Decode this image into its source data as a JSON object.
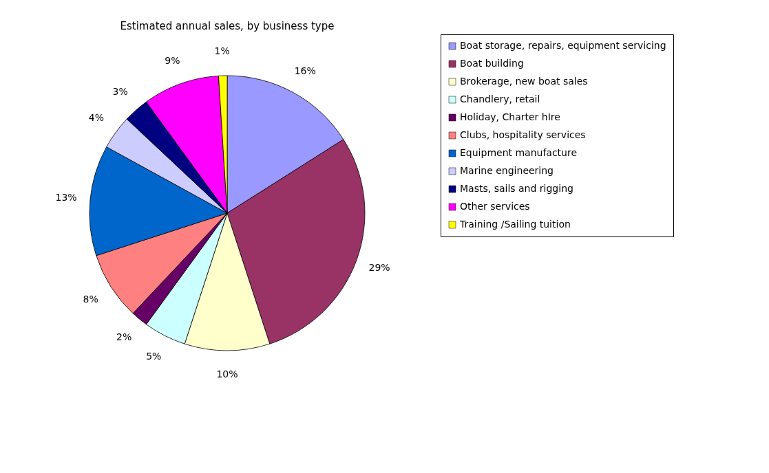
{
  "chart_data": {
    "type": "pie",
    "title": "Estimated annual sales, by business type",
    "categories": [
      "Boat storage, repairs, equipment servicing",
      "Boat building",
      "Brokerage, new boat sales",
      "Chandlery, retail",
      "Holiday, Charter hIre",
      "Clubs, hospitality services",
      "Equipment manufacture",
      "Marine engineering",
      "Masts, sails and rigging",
      "Other services",
      "Training /Sailing tuition"
    ],
    "values": [
      16,
      29,
      10,
      5,
      2,
      8,
      13,
      4,
      3,
      9,
      1
    ],
    "value_labels": [
      "16%",
      "29%",
      "10%",
      "5%",
      "2%",
      "8%",
      "13%",
      "4%",
      "3%",
      "9%",
      "1%"
    ],
    "colors": [
      "#9999ff",
      "#993366",
      "#ffffcc",
      "#ccffff",
      "#660066",
      "#ff8080",
      "#0066cc",
      "#ccccff",
      "#000080",
      "#ff00ff",
      "#ffff00"
    ],
    "legend": "right"
  }
}
